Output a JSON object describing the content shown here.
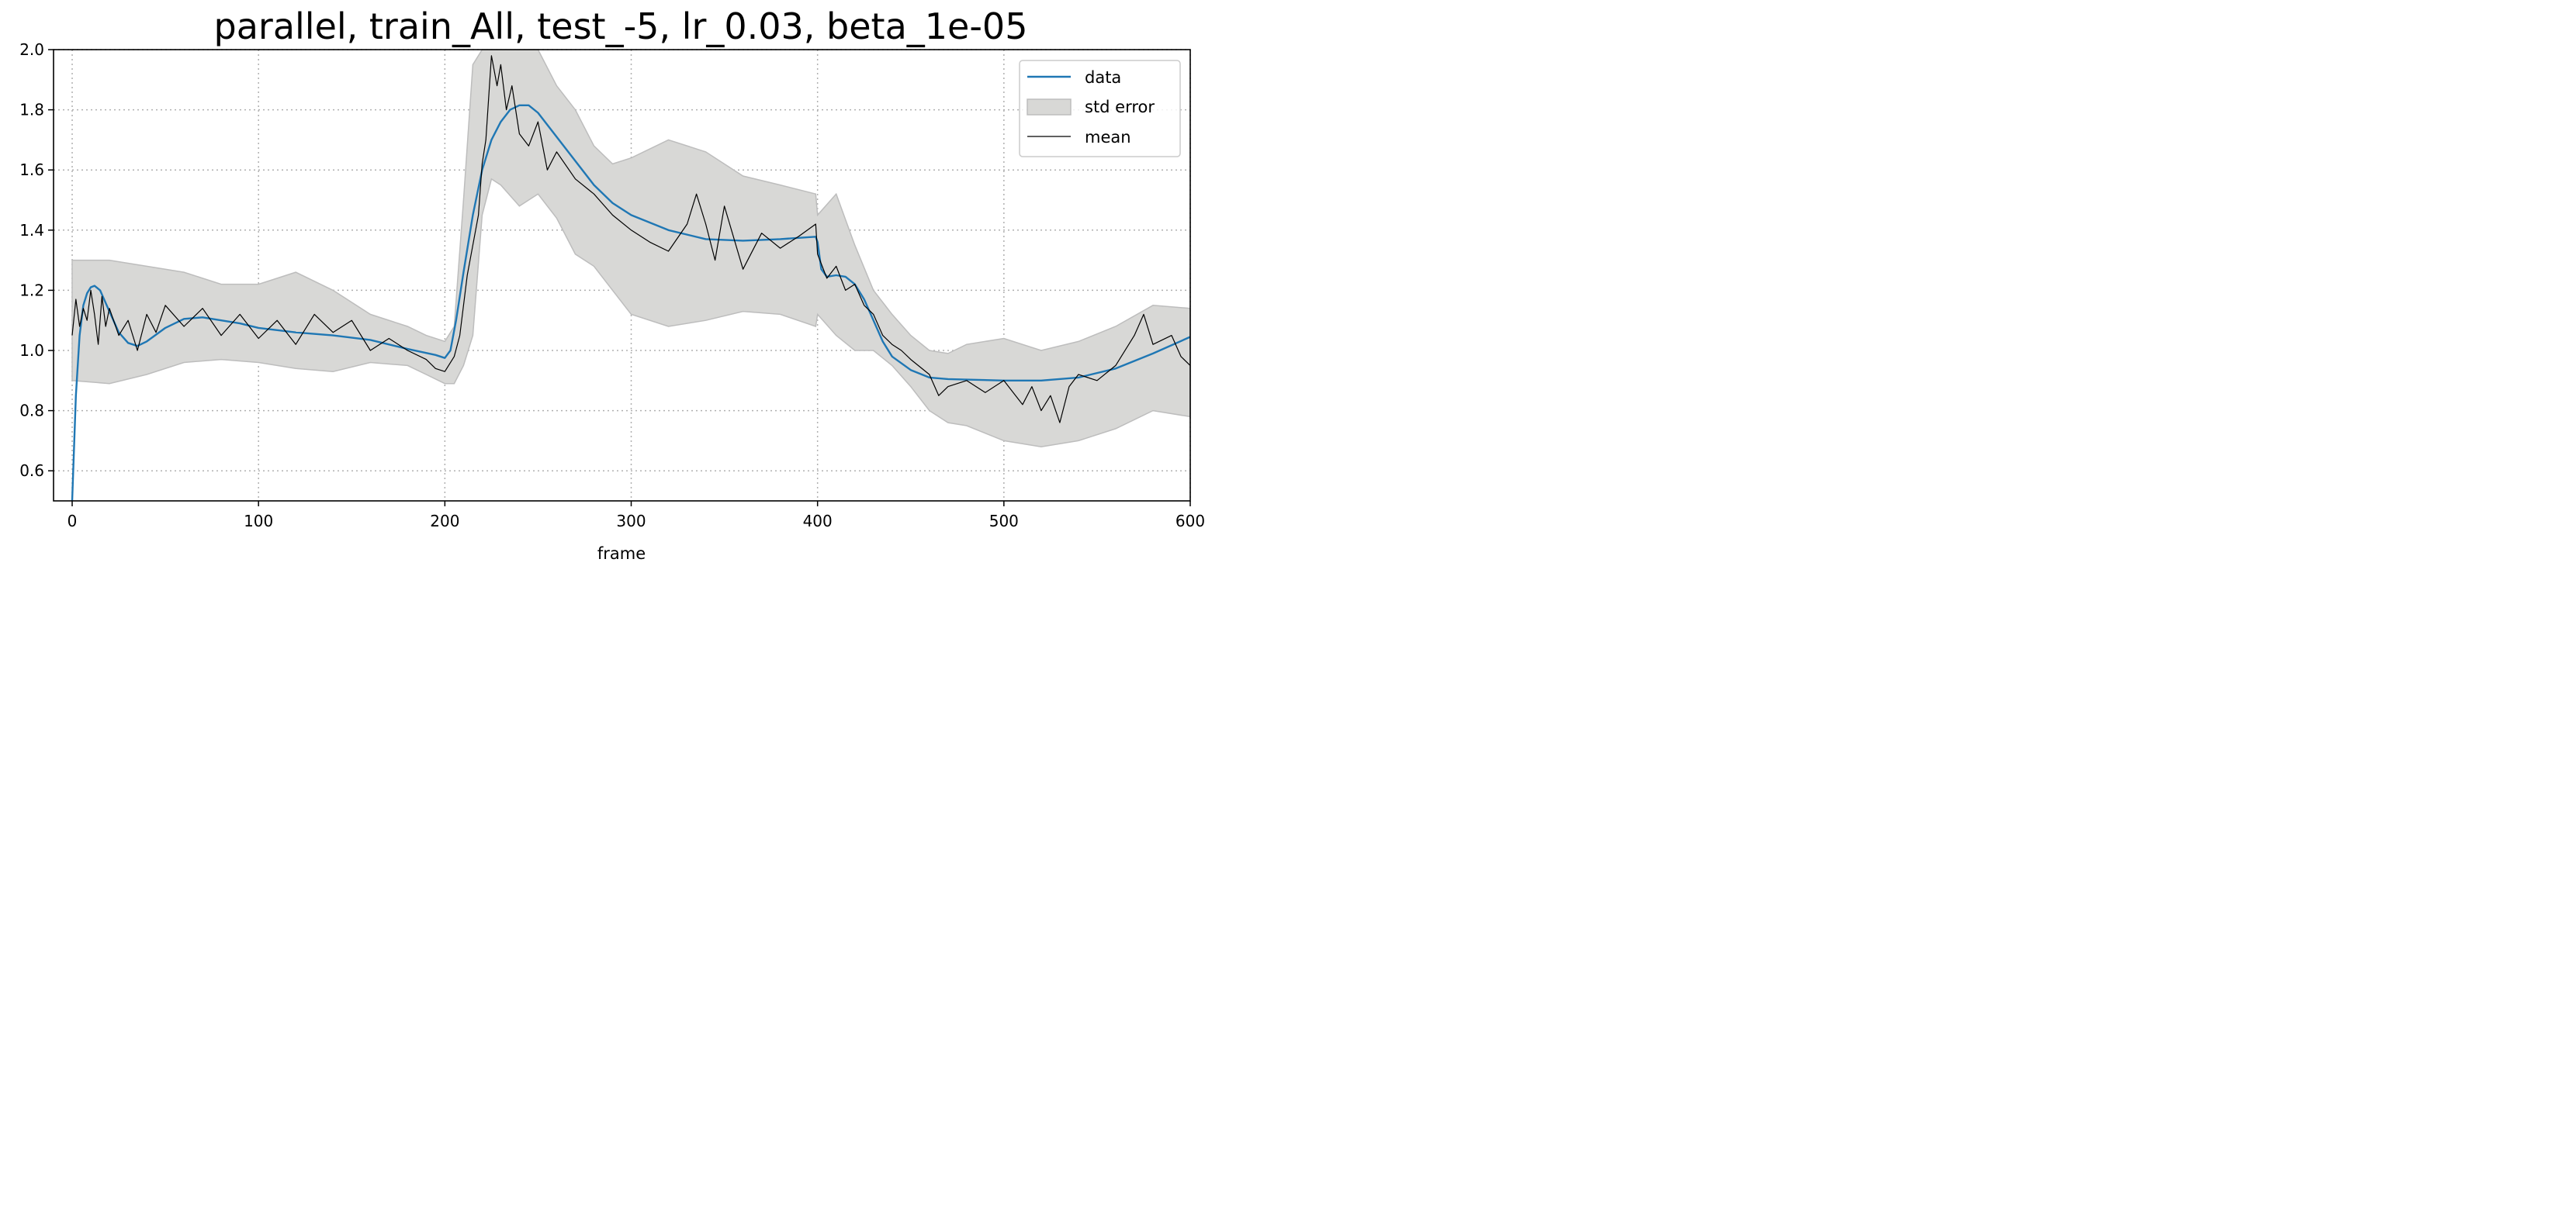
{
  "chart_data": {
    "type": "line",
    "title": "parallel, train_All, test_-5, lr_0.03, beta_1e-05",
    "xlabel": "frame",
    "ylabel": "",
    "xlim": [
      -10,
      600
    ],
    "ylim": [
      0.5,
      2.0
    ],
    "xticks": [
      0,
      100,
      200,
      300,
      400,
      500,
      600
    ],
    "xtick_labels": [
      "0",
      "100",
      "200",
      "300",
      "400",
      "500",
      "600"
    ],
    "yticks": [
      0.6,
      0.8,
      1.0,
      1.2,
      1.4,
      1.6,
      1.8,
      2.0
    ],
    "ytick_labels": [
      "0.6",
      "0.8",
      "1.0",
      "1.2",
      "1.4",
      "1.6",
      "1.8",
      "2.0"
    ],
    "grid": true,
    "legend_position": "top-right",
    "series": [
      {
        "name": "data",
        "kind": "line",
        "color": "#1f77b4",
        "x": [
          0,
          2,
          4,
          6,
          8,
          10,
          12,
          15,
          20,
          25,
          30,
          35,
          40,
          50,
          60,
          70,
          80,
          90,
          100,
          120,
          140,
          160,
          180,
          195,
          200,
          203,
          206,
          210,
          215,
          220,
          225,
          230,
          235,
          240,
          245,
          250,
          260,
          270,
          280,
          290,
          300,
          320,
          340,
          360,
          380,
          399,
          400,
          402,
          405,
          410,
          415,
          420,
          425,
          430,
          435,
          440,
          450,
          460,
          470,
          480,
          500,
          520,
          540,
          560,
          580,
          600
        ],
        "y": [
          0.5,
          0.85,
          1.05,
          1.15,
          1.19,
          1.21,
          1.215,
          1.2,
          1.13,
          1.06,
          1.025,
          1.015,
          1.03,
          1.075,
          1.105,
          1.11,
          1.1,
          1.09,
          1.075,
          1.06,
          1.05,
          1.035,
          1.005,
          0.985,
          0.975,
          1.0,
          1.1,
          1.26,
          1.45,
          1.6,
          1.7,
          1.76,
          1.8,
          1.815,
          1.815,
          1.79,
          1.71,
          1.63,
          1.55,
          1.49,
          1.45,
          1.4,
          1.37,
          1.365,
          1.37,
          1.378,
          1.36,
          1.27,
          1.245,
          1.25,
          1.245,
          1.22,
          1.17,
          1.1,
          1.03,
          0.98,
          0.935,
          0.91,
          0.905,
          0.903,
          0.9,
          0.9,
          0.91,
          0.94,
          0.99,
          1.045
        ]
      },
      {
        "name": "std error",
        "kind": "band",
        "color": "#d8d8d6",
        "edge_color": "#bdbdbd",
        "x": [
          0,
          20,
          40,
          60,
          80,
          100,
          120,
          140,
          160,
          180,
          190,
          200,
          205,
          210,
          215,
          220,
          225,
          230,
          240,
          250,
          260,
          270,
          280,
          290,
          300,
          320,
          340,
          360,
          380,
          399,
          400,
          410,
          420,
          430,
          440,
          450,
          460,
          470,
          480,
          500,
          520,
          540,
          560,
          580,
          600
        ],
        "lower": [
          0.9,
          0.89,
          0.92,
          0.96,
          0.97,
          0.96,
          0.94,
          0.93,
          0.96,
          0.95,
          0.92,
          0.89,
          0.89,
          0.95,
          1.05,
          1.45,
          1.57,
          1.55,
          1.48,
          1.52,
          1.44,
          1.32,
          1.28,
          1.2,
          1.12,
          1.08,
          1.1,
          1.13,
          1.12,
          1.08,
          1.12,
          1.05,
          1.0,
          1.0,
          0.95,
          0.88,
          0.8,
          0.76,
          0.75,
          0.7,
          0.68,
          0.7,
          0.74,
          0.8,
          0.78
        ],
        "upper": [
          1.3,
          1.3,
          1.28,
          1.26,
          1.22,
          1.22,
          1.26,
          1.2,
          1.12,
          1.08,
          1.05,
          1.03,
          1.08,
          1.5,
          1.95,
          2.0,
          2.0,
          2.0,
          2.0,
          2.0,
          1.88,
          1.8,
          1.68,
          1.62,
          1.64,
          1.7,
          1.66,
          1.58,
          1.55,
          1.52,
          1.45,
          1.52,
          1.35,
          1.2,
          1.12,
          1.05,
          1.0,
          0.99,
          1.02,
          1.04,
          1.0,
          1.03,
          1.08,
          1.15,
          1.14
        ]
      },
      {
        "name": "mean",
        "kind": "line",
        "color": "#000000",
        "x": [
          0,
          2,
          4,
          6,
          8,
          10,
          12,
          14,
          16,
          18,
          20,
          25,
          30,
          35,
          40,
          45,
          50,
          60,
          70,
          80,
          90,
          100,
          110,
          120,
          130,
          140,
          150,
          160,
          170,
          180,
          190,
          195,
          200,
          205,
          208,
          212,
          215,
          218,
          220,
          222,
          225,
          228,
          230,
          233,
          236,
          240,
          245,
          250,
          255,
          260,
          270,
          280,
          290,
          300,
          310,
          320,
          330,
          335,
          340,
          345,
          350,
          360,
          370,
          380,
          390,
          399,
          400,
          405,
          410,
          415,
          420,
          425,
          430,
          435,
          440,
          445,
          450,
          460,
          465,
          470,
          480,
          490,
          500,
          510,
          515,
          520,
          525,
          530,
          535,
          540,
          550,
          560,
          570,
          575,
          580,
          590,
          595,
          600
        ],
        "y": [
          1.05,
          1.17,
          1.08,
          1.14,
          1.1,
          1.2,
          1.12,
          1.02,
          1.18,
          1.08,
          1.14,
          1.05,
          1.1,
          1.0,
          1.12,
          1.06,
          1.15,
          1.08,
          1.14,
          1.05,
          1.12,
          1.04,
          1.1,
          1.02,
          1.12,
          1.06,
          1.1,
          1.0,
          1.04,
          1.0,
          0.97,
          0.94,
          0.93,
          0.98,
          1.05,
          1.25,
          1.35,
          1.45,
          1.62,
          1.7,
          1.98,
          1.88,
          1.95,
          1.8,
          1.88,
          1.72,
          1.68,
          1.76,
          1.6,
          1.66,
          1.57,
          1.52,
          1.45,
          1.4,
          1.36,
          1.33,
          1.42,
          1.52,
          1.42,
          1.3,
          1.48,
          1.27,
          1.39,
          1.34,
          1.38,
          1.42,
          1.32,
          1.24,
          1.28,
          1.2,
          1.22,
          1.15,
          1.12,
          1.05,
          1.02,
          1.0,
          0.97,
          0.92,
          0.85,
          0.88,
          0.9,
          0.86,
          0.9,
          0.82,
          0.88,
          0.8,
          0.85,
          0.76,
          0.88,
          0.92,
          0.9,
          0.95,
          1.05,
          1.12,
          1.02,
          1.05,
          0.98,
          0.95
        ]
      }
    ]
  }
}
